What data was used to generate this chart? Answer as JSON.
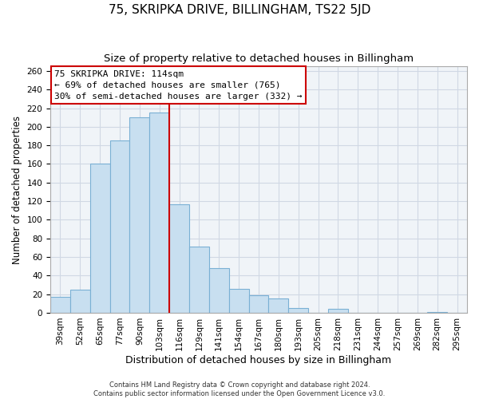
{
  "title": "75, SKRIPKA DRIVE, BILLINGHAM, TS22 5JD",
  "subtitle": "Size of property relative to detached houses in Billingham",
  "xlabel": "Distribution of detached houses by size in Billingham",
  "ylabel": "Number of detached properties",
  "categories": [
    "39sqm",
    "52sqm",
    "65sqm",
    "77sqm",
    "90sqm",
    "103sqm",
    "116sqm",
    "129sqm",
    "141sqm",
    "154sqm",
    "167sqm",
    "180sqm",
    "193sqm",
    "205sqm",
    "218sqm",
    "231sqm",
    "244sqm",
    "257sqm",
    "269sqm",
    "282sqm",
    "295sqm"
  ],
  "values": [
    17,
    25,
    160,
    185,
    210,
    215,
    117,
    71,
    48,
    26,
    19,
    15,
    5,
    0,
    4,
    0,
    0,
    0,
    0,
    1,
    0
  ],
  "bar_color": "#c8dff0",
  "bar_edge_color": "#7ab0d4",
  "highlight_line_color": "#cc0000",
  "ylim": [
    0,
    265
  ],
  "yticks": [
    0,
    20,
    40,
    60,
    80,
    100,
    120,
    140,
    160,
    180,
    200,
    220,
    240,
    260
  ],
  "annotation_text_line1": "75 SKRIPKA DRIVE: 114sqm",
  "annotation_text_line2": "← 69% of detached houses are smaller (765)",
  "annotation_text_line3": "30% of semi-detached houses are larger (332) →",
  "annotation_box_color": "#ffffff",
  "annotation_box_edge": "#cc0000",
  "footnote1": "Contains HM Land Registry data © Crown copyright and database right 2024.",
  "footnote2": "Contains public sector information licensed under the Open Government Licence v3.0.",
  "title_fontsize": 11,
  "subtitle_fontsize": 9.5,
  "xlabel_fontsize": 9,
  "ylabel_fontsize": 8.5,
  "tick_fontsize": 7.5,
  "annot_fontsize": 8,
  "footnote_fontsize": 6,
  "grid_color": "#d0d8e4",
  "background_color": "#f0f4f8"
}
